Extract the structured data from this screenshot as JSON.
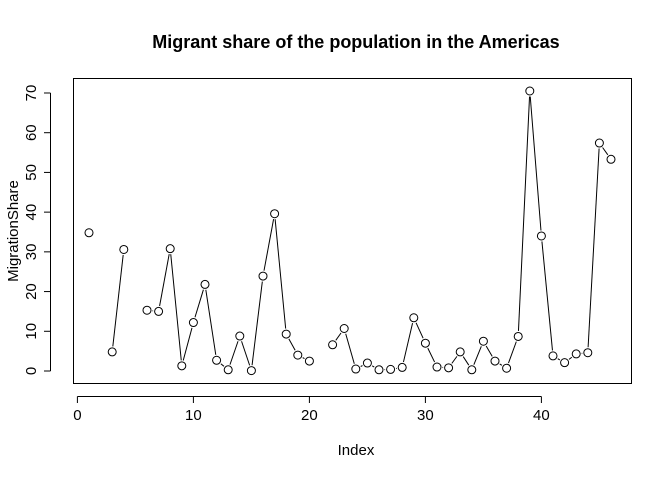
{
  "chart_data": {
    "type": "line",
    "title": "Migrant share of the population in the Americas",
    "xlabel": "Index",
    "ylabel": "MigrationShare",
    "xlim": [
      1,
      46
    ],
    "ylim": [
      0,
      70.5
    ],
    "xticks": [
      0,
      10,
      20,
      30,
      40
    ],
    "yticks": [
      0,
      10,
      20,
      30,
      40,
      50,
      60,
      70
    ],
    "grid": false,
    "legend": "none",
    "series": [
      {
        "x": [
          1,
          2,
          3,
          4,
          5,
          6,
          7,
          8,
          9,
          10,
          11,
          12,
          13,
          14,
          15,
          16,
          17,
          18,
          19,
          20,
          21,
          22,
          23,
          24,
          25,
          26,
          27,
          28,
          29,
          30,
          31,
          32,
          33,
          34,
          35,
          36,
          37,
          38,
          39,
          40,
          41,
          42,
          43,
          44,
          45,
          46
        ],
        "values": [
          34.8,
          null,
          4.8,
          30.6,
          null,
          15.3,
          15.0,
          30.8,
          1.3,
          12.2,
          21.8,
          2.7,
          0.3,
          8.8,
          0.1,
          23.9,
          39.6,
          9.3,
          4.0,
          2.5,
          null,
          6.6,
          10.7,
          0.5,
          2.0,
          0.3,
          0.4,
          0.9,
          13.4,
          7.0,
          1.0,
          0.8,
          4.8,
          0.3,
          7.5,
          2.5,
          0.7,
          8.7,
          70.5,
          34.0,
          3.8,
          2.1,
          4.3,
          4.6,
          57.4,
          53.3
        ]
      }
    ]
  }
}
